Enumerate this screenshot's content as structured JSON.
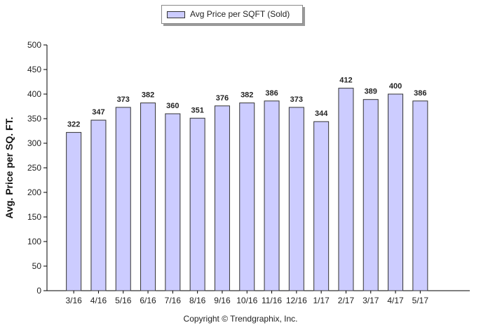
{
  "chart_data": {
    "type": "bar",
    "categories": [
      "3/16",
      "4/16",
      "5/16",
      "6/16",
      "7/16",
      "8/16",
      "9/16",
      "10/16",
      "11/16",
      "12/16",
      "1/17",
      "2/17",
      "3/17",
      "4/17",
      "5/17"
    ],
    "series": [
      {
        "name": "Avg Price per SQFT (Sold)",
        "values": [
          322,
          347,
          373,
          382,
          360,
          351,
          376,
          382,
          386,
          373,
          344,
          412,
          389,
          400,
          386
        ]
      }
    ],
    "title": "",
    "xlabel": "",
    "ylabel": "Avg. Price per SQ. FT.",
    "ylim": [
      0,
      500
    ],
    "yticks": [
      0,
      50,
      100,
      150,
      200,
      250,
      300,
      350,
      400,
      450,
      500
    ],
    "grid": false,
    "legend_position": "top-center",
    "colors": {
      "bar_fill": "#ccccff",
      "bar_stroke": "#333333"
    }
  },
  "footer": {
    "copyright": "Copyright © Trendgraphix, Inc."
  }
}
